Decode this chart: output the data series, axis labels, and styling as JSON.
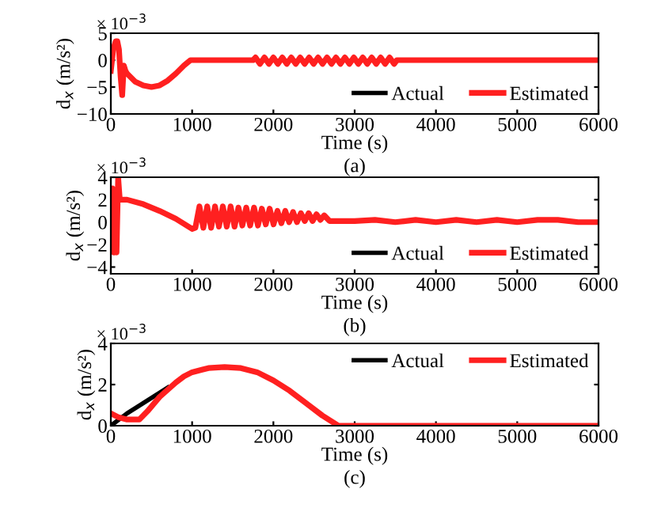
{
  "chart_data": [
    {
      "type": "line",
      "xlabel": "Time (s)",
      "ylabel": "d$_{x}$ (m/s²)",
      "annotations": [
        "× 10$^{−3}$",
        "(a)"
      ],
      "xlim": [
        0,
        6000
      ],
      "xticks": [
        0,
        1000,
        2000,
        3000,
        4000,
        5000,
        6000
      ],
      "ylim": [
        -10,
        5
      ],
      "yticks": [
        -10,
        -5,
        0,
        5
      ],
      "legend": "bottom right",
      "grid": false,
      "series": [
        {
          "name": "Actual",
          "color": "#000000"
        },
        {
          "name": "Estimated",
          "color": "#ff2020",
          "x": [
            0,
            30,
            60,
            80,
            100,
            120,
            140,
            160,
            180,
            200,
            300,
            400,
            500,
            600,
            700,
            800,
            900,
            980,
            1750,
            1780,
            1835,
            1890,
            1945,
            2000,
            2055,
            2110,
            2165,
            2220,
            2275,
            2330,
            2385,
            2440,
            2495,
            2550,
            2605,
            2660,
            2715,
            2770,
            2825,
            2880,
            2935,
            2990,
            3045,
            3100,
            3155,
            3210,
            3265,
            3320,
            3375,
            3430,
            3485,
            3520,
            6000
          ],
          "values": [
            -2,
            2,
            3.5,
            3.5,
            2,
            -3,
            -6.5,
            -1,
            -2,
            -2.5,
            -4,
            -4.7,
            -5,
            -4.7,
            -3.8,
            -2.5,
            -1,
            0,
            0,
            0.5,
            -0.7,
            0.5,
            -0.7,
            0.5,
            -0.7,
            0.5,
            -0.7,
            0.5,
            -0.7,
            0.5,
            -0.7,
            0.5,
            -0.7,
            0.5,
            -0.7,
            0.5,
            -0.7,
            0.5,
            -0.7,
            0.5,
            -0.7,
            0.5,
            -0.7,
            0.5,
            -0.7,
            0.5,
            -0.7,
            0.5,
            -0.7,
            0.5,
            -0.7,
            0,
            0
          ]
        }
      ]
    },
    {
      "type": "line",
      "xlabel": "Time (s)",
      "ylabel": "d$_{x}$ (m/s²)",
      "annotations": [
        "× 10$^{−3}$",
        "(b)"
      ],
      "xlim": [
        0,
        6000
      ],
      "xticks": [
        0,
        1000,
        2000,
        3000,
        4000,
        5000,
        6000
      ],
      "ylim": [
        -4.6,
        4
      ],
      "yticks": [
        -4,
        -2,
        0,
        2,
        4
      ],
      "legend": "bottom right",
      "grid": false,
      "series": [
        {
          "name": "Actual",
          "color": "#000000"
        },
        {
          "name": "Estimated",
          "color": "#ff2020",
          "x": [
            0,
            20,
            40,
            60,
            70,
            90,
            110,
            200,
            400,
            600,
            800,
            1000,
            1040,
            1090,
            1138,
            1186,
            1234,
            1282,
            1330,
            1378,
            1426,
            1474,
            1522,
            1570,
            1618,
            1666,
            1714,
            1762,
            1810,
            1858,
            1906,
            1954,
            2002,
            2050,
            2098,
            2146,
            2194,
            2242,
            2290,
            2338,
            2386,
            2434,
            2482,
            2530,
            2578,
            2626,
            2690,
            3000,
            3250,
            3500,
            3750,
            4000,
            4250,
            4500,
            4750,
            5000,
            5250,
            5500,
            5750,
            6000
          ],
          "values": [
            0,
            3,
            -2.7,
            2,
            -2.7,
            4,
            2,
            2,
            1.6,
            1,
            0.3,
            -0.6,
            -0.5,
            1.4,
            -0.5,
            1.4,
            -0.5,
            1.4,
            -0.4,
            1.4,
            -0.4,
            1.4,
            -0.4,
            1.3,
            -0.3,
            1.3,
            -0.3,
            1.3,
            -0.3,
            1.2,
            -0.2,
            1.2,
            -0.2,
            1,
            -0.1,
            1,
            0,
            0.9,
            0,
            0.8,
            0.1,
            0.8,
            0.1,
            0.7,
            0.2,
            0.6,
            0.1,
            0.1,
            0.2,
            0,
            0.2,
            0,
            0.2,
            0,
            0.2,
            0,
            0.2,
            0.2,
            0,
            0
          ]
        }
      ]
    },
    {
      "type": "line",
      "xlabel": "Time (s)",
      "ylabel": "d$_{x}$ (m/s²)",
      "annotations": [
        "× 10$^{−3}$",
        "(c)"
      ],
      "xlim": [
        0,
        6000
      ],
      "xticks": [
        0,
        1000,
        2000,
        3000,
        4000,
        5000,
        6000
      ],
      "ylim": [
        0,
        4
      ],
      "yticks": [
        0,
        2,
        4
      ],
      "legend": "top right",
      "grid": false,
      "series": [
        {
          "name": "Actual",
          "color": "#000000",
          "x": [
            0,
            200,
            400,
            600,
            700
          ],
          "values": [
            0,
            0.6,
            1.1,
            1.6,
            1.85
          ]
        },
        {
          "name": "Estimated",
          "color": "#ff2020",
          "x": [
            0,
            100,
            200,
            350,
            450,
            600,
            800,
            900,
            1000,
            1200,
            1400,
            1600,
            1800,
            2000,
            2200,
            2400,
            2600,
            2800,
            6000
          ],
          "values": [
            0.6,
            0.4,
            0.3,
            0.3,
            0.7,
            1.4,
            2.1,
            2.4,
            2.6,
            2.8,
            2.85,
            2.8,
            2.6,
            2.2,
            1.7,
            1.1,
            0.5,
            0,
            0
          ]
        }
      ]
    }
  ]
}
